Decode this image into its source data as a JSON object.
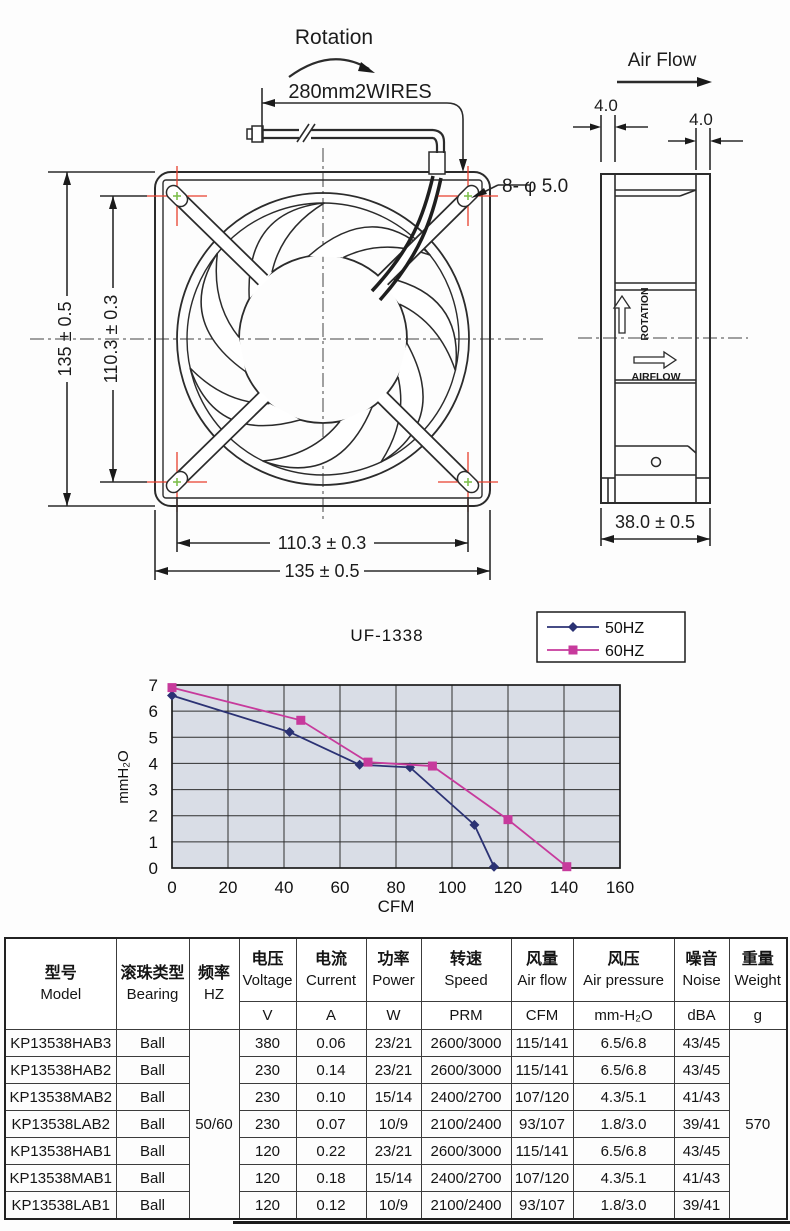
{
  "front_view": {
    "rotation_label": "Rotation",
    "wires_label": "280mm2WIRES",
    "holes_label": "8- φ 5.0",
    "height_outer": "135 ± 0.5",
    "height_inner": "110.3 ± 0.3",
    "width_inner": "110.3 ± 0.3",
    "width_outer": "135 ± 0.5"
  },
  "side_view": {
    "air_flow_label": "Air Flow",
    "thickness_left": "4.0",
    "thickness_right": "4.0",
    "rotation_text": "ROTATION",
    "airflow_text": "AIRFLOW",
    "depth": "38.0 ± 0.5"
  },
  "chart_data": {
    "type": "line",
    "title": "UF-1338",
    "xlabel": "CFM",
    "ylabel": "mmH₂O",
    "xlim": [
      0,
      160
    ],
    "ylim": [
      0,
      7
    ],
    "xticks": [
      0,
      20,
      40,
      60,
      80,
      100,
      120,
      140,
      160
    ],
    "yticks": [
      0,
      1,
      2,
      3,
      4,
      5,
      6,
      7
    ],
    "grid": true,
    "plot_bg": "#d9dde6",
    "legend_position": "top-right",
    "series": [
      {
        "name": "50HZ",
        "color": "#2b3274",
        "marker": "diamond",
        "points": [
          [
            0,
            6.6
          ],
          [
            42,
            5.2
          ],
          [
            67,
            3.95
          ],
          [
            85,
            3.85
          ],
          [
            108,
            1.65
          ],
          [
            115,
            0.05
          ]
        ]
      },
      {
        "name": "60HZ",
        "color": "#c73a9c",
        "marker": "square",
        "points": [
          [
            0,
            6.9
          ],
          [
            46,
            5.65
          ],
          [
            70,
            4.05
          ],
          [
            93,
            3.9
          ],
          [
            120,
            1.85
          ],
          [
            141,
            0.05
          ]
        ]
      }
    ]
  },
  "table": {
    "headers": [
      {
        "zh": "型号",
        "en": "Model",
        "unit": ""
      },
      {
        "zh": "滚珠类型",
        "en": "Bearing",
        "unit": ""
      },
      {
        "zh": "频率",
        "en": "HZ",
        "unit": ""
      },
      {
        "zh": "电压",
        "en": "Voltage",
        "unit": "V"
      },
      {
        "zh": "电流",
        "en": "Current",
        "unit": "A"
      },
      {
        "zh": "功率",
        "en": "Power",
        "unit": "W"
      },
      {
        "zh": "转速",
        "en": "Speed",
        "unit": "PRM"
      },
      {
        "zh": "风量",
        "en": "Air flow",
        "unit": "CFM"
      },
      {
        "zh": "风压",
        "en": "Air pressure",
        "unit": "mm-H₂O"
      },
      {
        "zh": "噪音",
        "en": "Noise",
        "unit": "dBA"
      },
      {
        "zh": "重量",
        "en": "Weight",
        "unit": "g"
      }
    ],
    "frequency_merged": "50/60",
    "weight_merged": "570",
    "rows": [
      [
        "KP13538HAB3",
        "Ball",
        "380",
        "0.06",
        "23/21",
        "2600/3000",
        "115/141",
        "6.5/6.8",
        "43/45"
      ],
      [
        "KP13538HAB2",
        "Ball",
        "230",
        "0.14",
        "23/21",
        "2600/3000",
        "115/141",
        "6.5/6.8",
        "43/45"
      ],
      [
        "KP13538MAB2",
        "Ball",
        "230",
        "0.10",
        "15/14",
        "2400/2700",
        "107/120",
        "4.3/5.1",
        "41/43"
      ],
      [
        "KP13538LAB2",
        "Ball",
        "230",
        "0.07",
        "10/9",
        "2100/2400",
        "93/107",
        "1.8/3.0",
        "39/41"
      ],
      [
        "KP13538HAB1",
        "Ball",
        "120",
        "0.22",
        "23/21",
        "2600/3000",
        "115/141",
        "6.5/6.8",
        "43/45"
      ],
      [
        "KP13538MAB1",
        "Ball",
        "120",
        "0.18",
        "15/14",
        "2400/2700",
        "107/120",
        "4.3/5.1",
        "41/43"
      ],
      [
        "KP13538LAB1",
        "Ball",
        "120",
        "0.12",
        "10/9",
        "2100/2400",
        "93/107",
        "1.8/3.0",
        "39/41"
      ]
    ]
  }
}
